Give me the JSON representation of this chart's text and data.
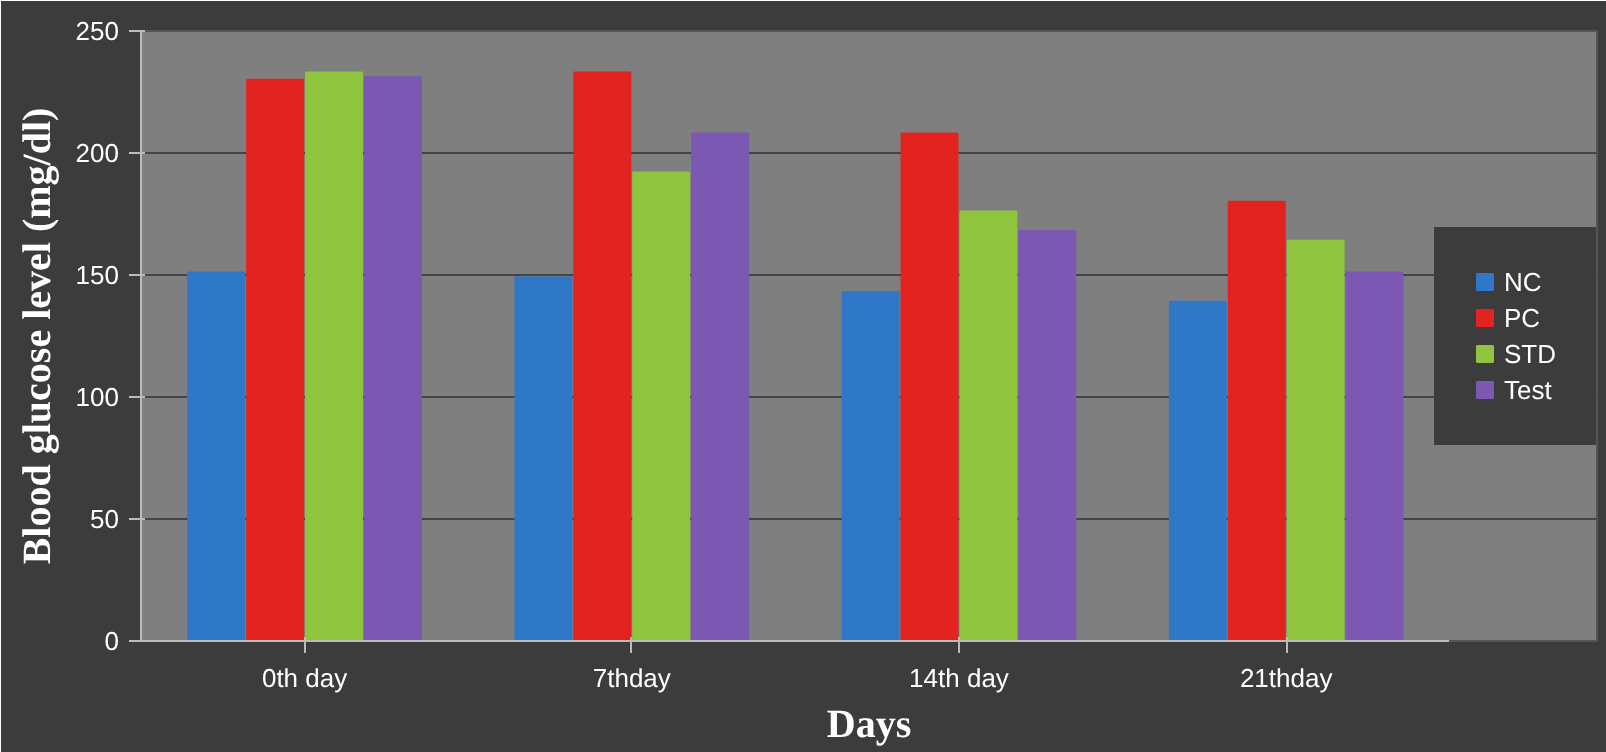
{
  "chart_data": {
    "type": "bar",
    "xlabel": "Days",
    "ylabel": "Blood glucose level (mg/dl)",
    "categories": [
      "0th day",
      "7thday",
      "14th day",
      "21thday"
    ],
    "series": [
      {
        "name": "NC",
        "color": "#2f78c8",
        "values": [
          151,
          149,
          143,
          139
        ]
      },
      {
        "name": "PC",
        "color": "#e2231f",
        "values": [
          230,
          233,
          208,
          180
        ]
      },
      {
        "name": "STD",
        "color": "#8fc43f",
        "values": [
          233,
          192,
          176,
          164
        ]
      },
      {
        "name": "Test",
        "color": "#7b59b3",
        "values": [
          231,
          208,
          168,
          151
        ]
      }
    ],
    "ylim": [
      0,
      250
    ],
    "yticks": [
      0,
      50,
      100,
      150,
      200,
      250
    ],
    "grid": "y",
    "legend": "right"
  }
}
